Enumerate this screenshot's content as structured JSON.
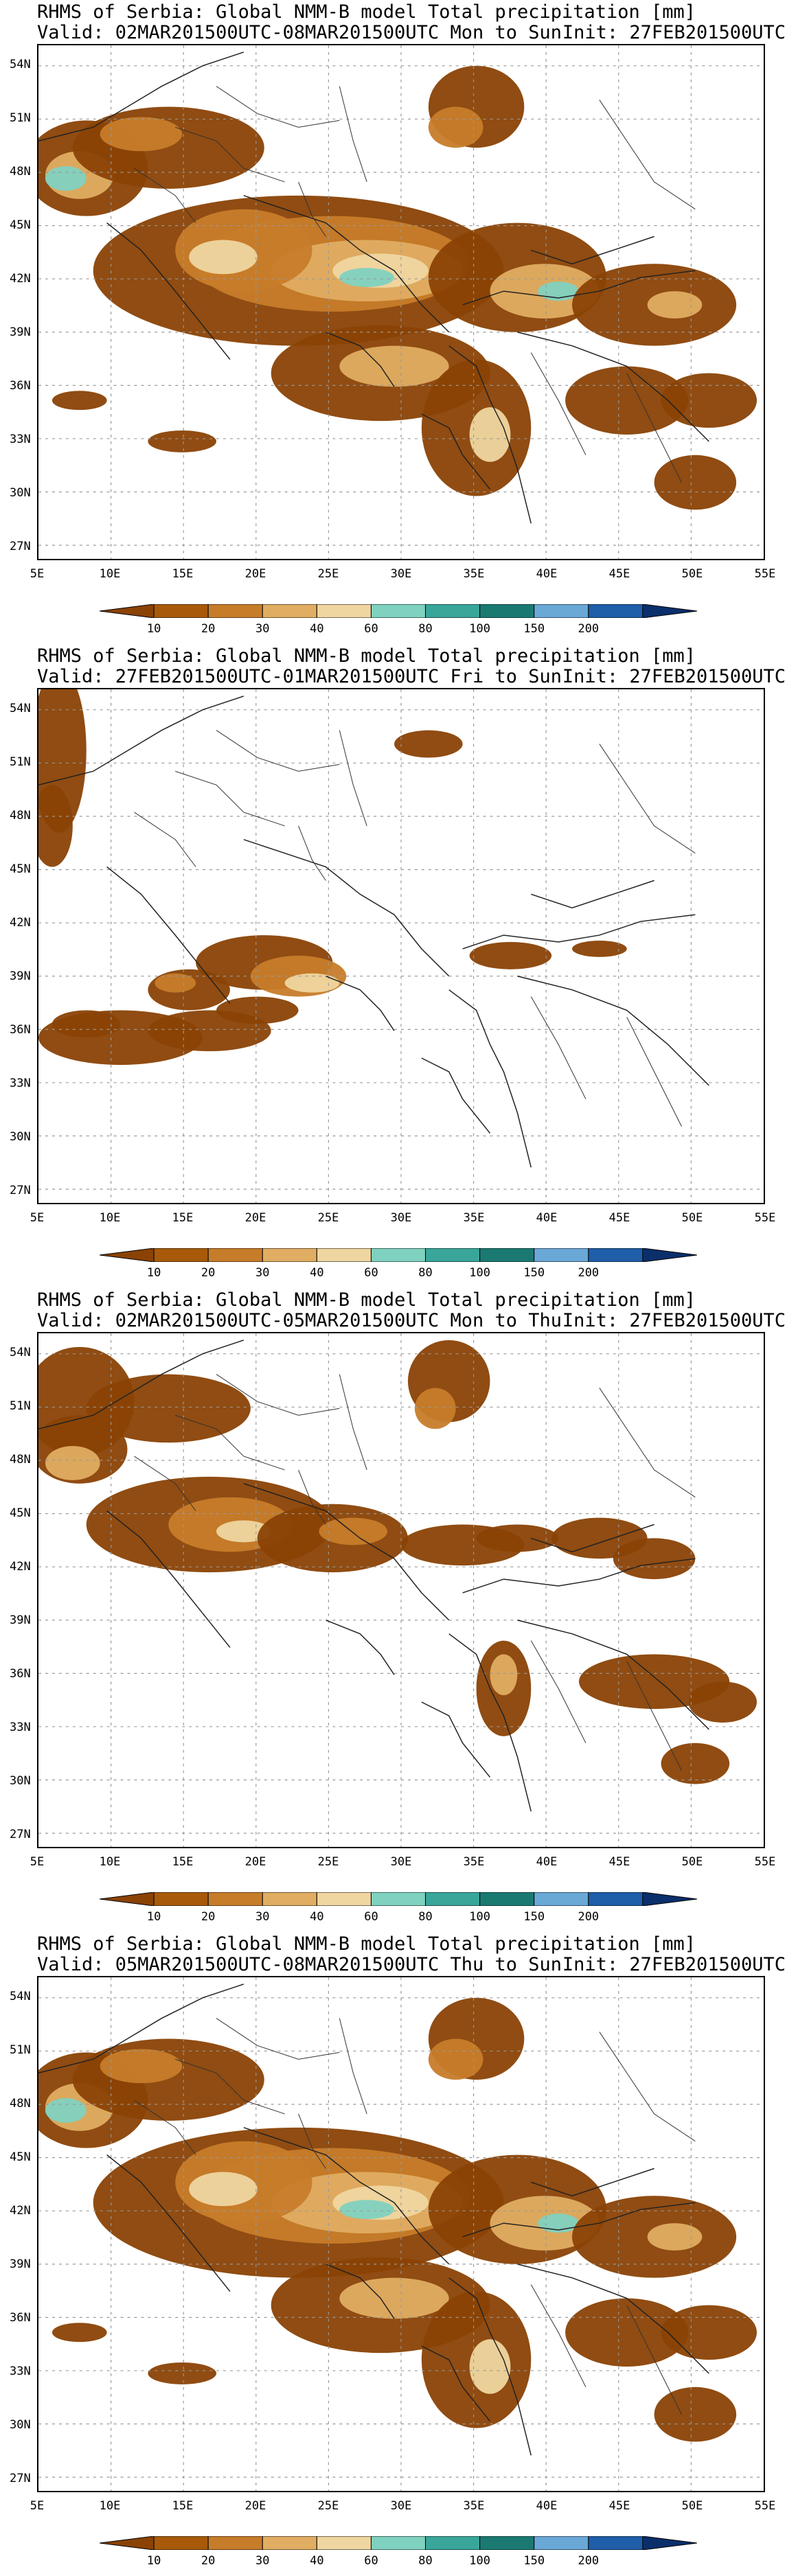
{
  "panels": [
    {
      "title": "RHMS of Serbia: Global NMM-B model Total precipitation [mm]",
      "valid": "Valid: 02MAR201500UTC-08MAR201500UTC Mon to Sun",
      "init": "Init: 27FEB201500UTC",
      "coverage": "heavy"
    },
    {
      "title": "RHMS of Serbia: Global NMM-B model Total precipitation [mm]",
      "valid": "Valid: 27FEB201500UTC-01MAR201500UTC Fri to Sun",
      "init": "Init: 27FEB201500UTC",
      "coverage": "light"
    },
    {
      "title": "RHMS of Serbia: Global NMM-B model Total precipitation [mm]",
      "valid": "Valid: 02MAR201500UTC-05MAR201500UTC Mon to Thu",
      "init": "Init: 27FEB201500UTC",
      "coverage": "medium"
    },
    {
      "title": "RHMS of Serbia: Global NMM-B model Total precipitation [mm]",
      "valid": "Valid: 05MAR201500UTC-08MAR201500UTC Thu to Sun",
      "init": "Init: 27FEB201500UTC",
      "coverage": "heavy"
    }
  ],
  "lat_labels": [
    "54N",
    "51N",
    "48N",
    "45N",
    "42N",
    "39N",
    "36N",
    "33N",
    "30N",
    "27N"
  ],
  "lon_labels": [
    "5E",
    "10E",
    "15E",
    "20E",
    "25E",
    "30E",
    "35E",
    "40E",
    "45E",
    "50E",
    "55E"
  ],
  "colorbar": {
    "labels": [
      "10",
      "20",
      "30",
      "40",
      "60",
      "80",
      "100",
      "150",
      "200"
    ],
    "colors": [
      "#a85a0a",
      "#c77c2a",
      "#e0ad62",
      "#efd6a0",
      "#7fd1c0",
      "#3aa69a",
      "#1a7a72",
      "#6aa8d6",
      "#1f5ea8"
    ],
    "below_color": "#8a4205",
    "above_color": "#0a2f6b"
  }
}
